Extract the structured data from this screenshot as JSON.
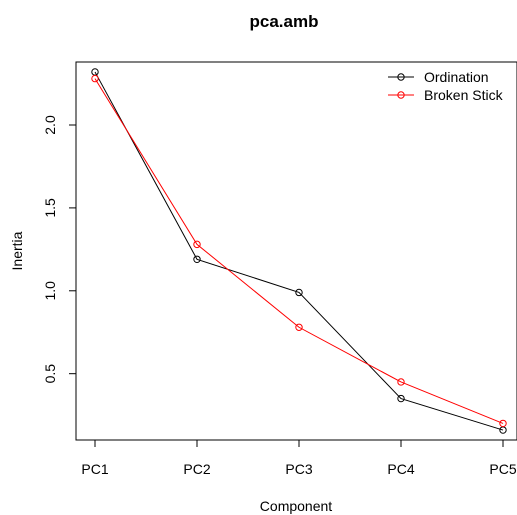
{
  "chart_data": {
    "type": "line",
    "title": "pca.amb",
    "xlabel": "Component",
    "ylabel": "Inertia",
    "categories": [
      "PC1",
      "PC2",
      "PC3",
      "PC4",
      "PC5"
    ],
    "y_ticks": [
      "0.5",
      "1.0",
      "1.5",
      "2.0"
    ],
    "ylim": [
      0.1,
      2.38
    ],
    "grid": false,
    "legend_position": "top-right",
    "series": [
      {
        "name": "Ordination",
        "color": "#000000",
        "marker": "open-circle",
        "values": [
          2.32,
          1.19,
          0.99,
          0.35,
          0.16
        ]
      },
      {
        "name": "Broken Stick",
        "color": "#ff0000",
        "marker": "open-circle",
        "values": [
          2.28,
          1.28,
          0.78,
          0.45,
          0.2
        ]
      }
    ]
  }
}
